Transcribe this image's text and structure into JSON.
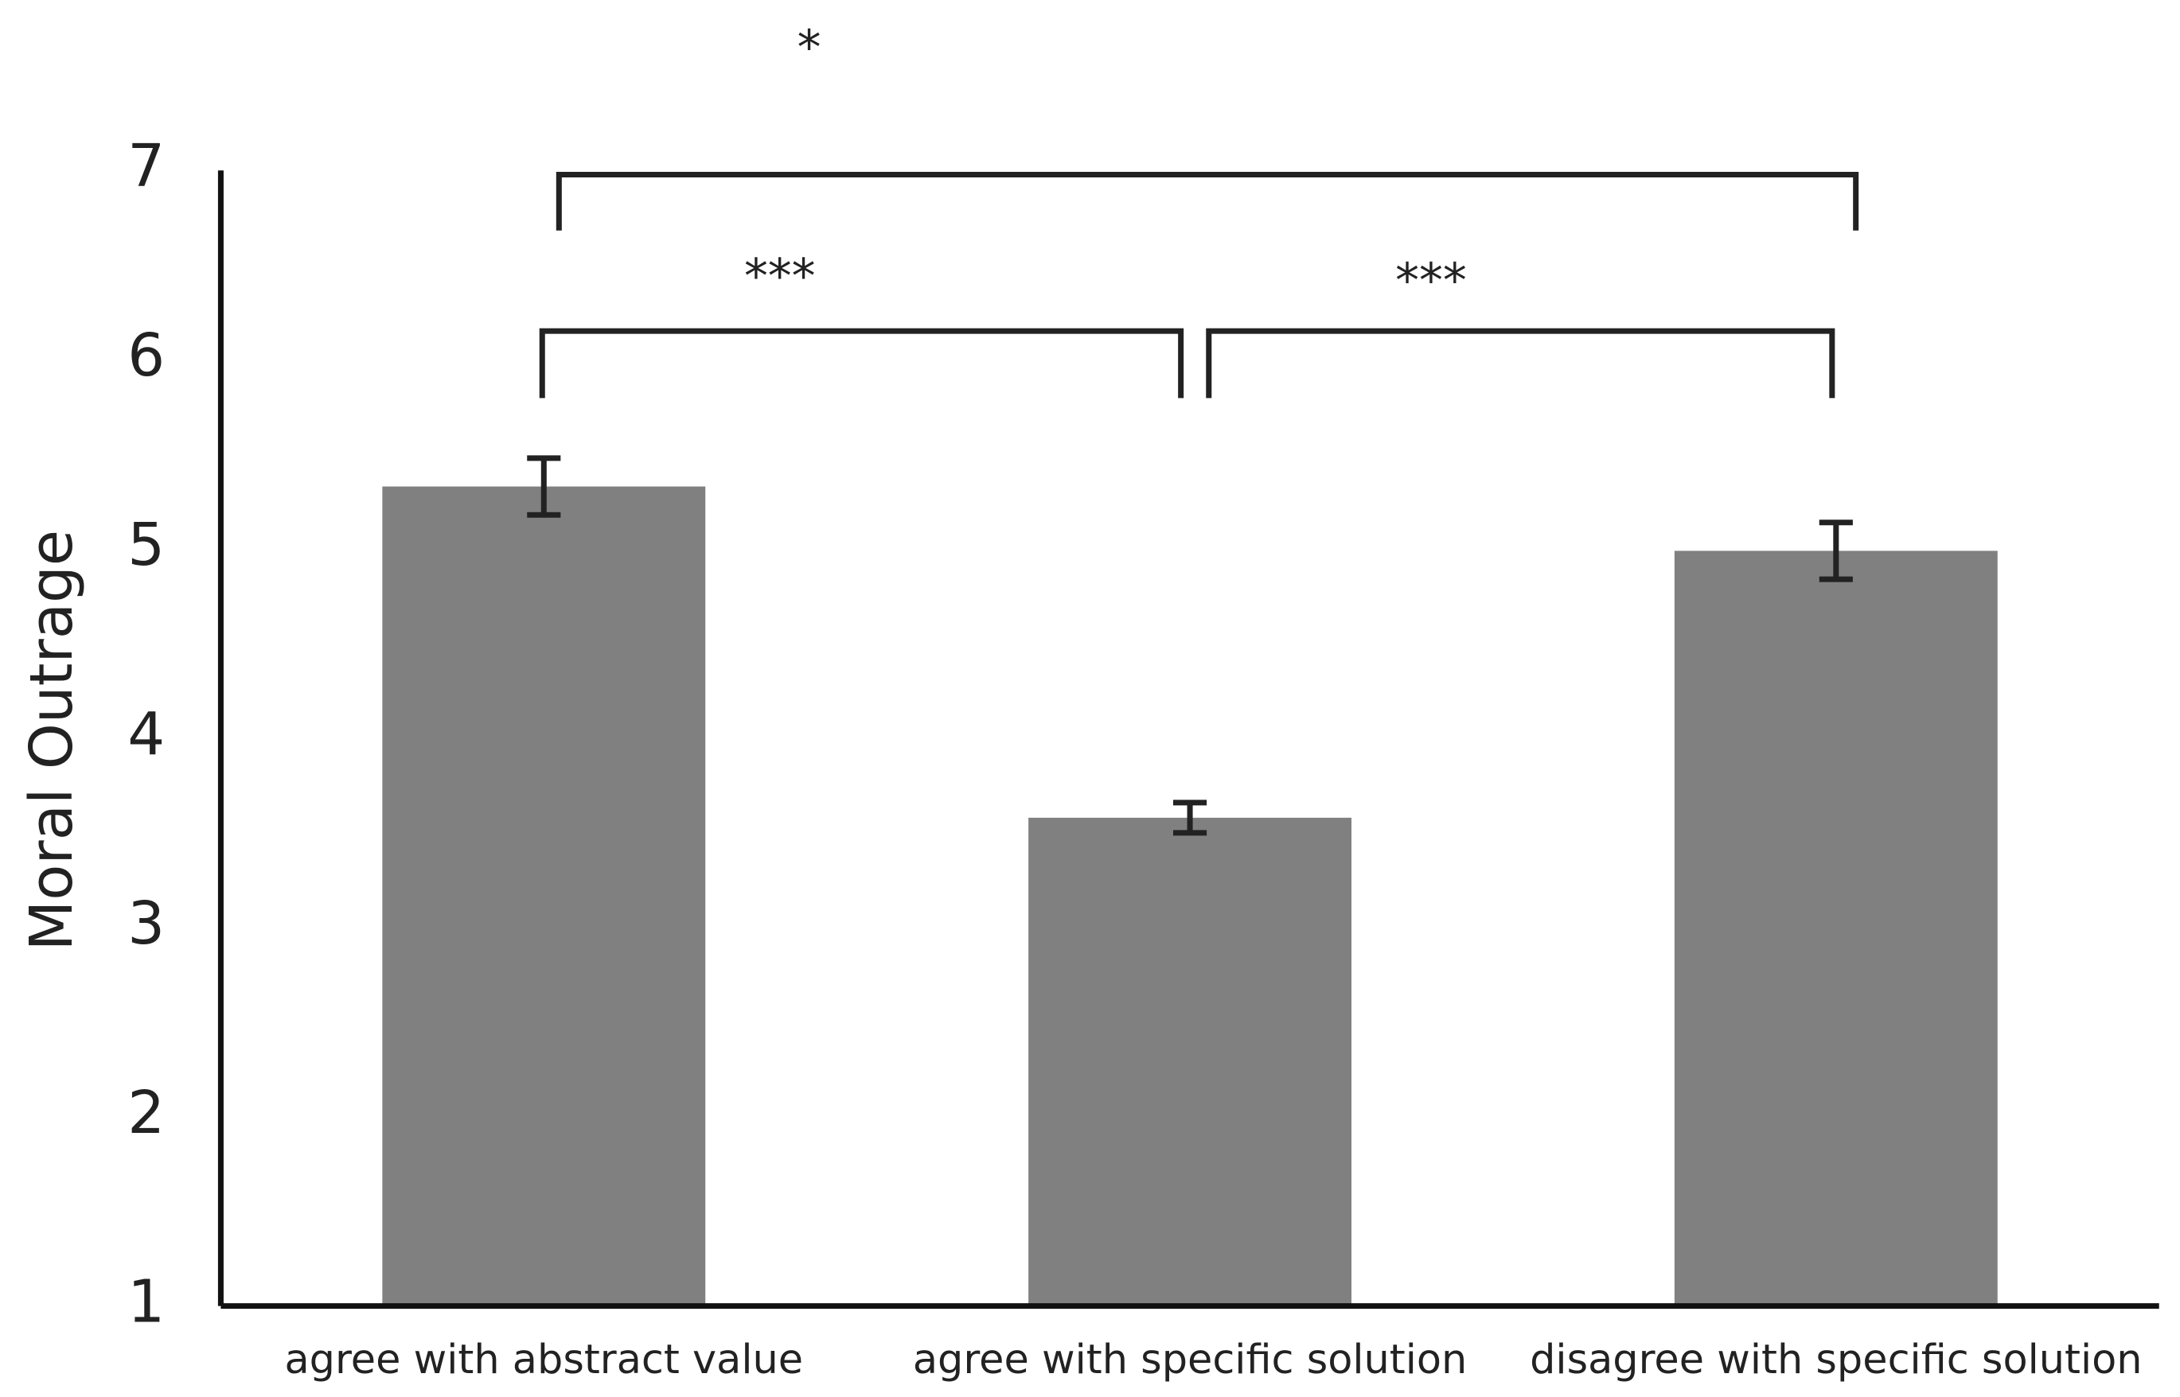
{
  "chart_data": {
    "type": "bar",
    "ylabel": "Moral Outrage",
    "categories": [
      "agree with abstract value",
      "agree with specific solution",
      "disagree with specific solution"
    ],
    "values": [
      5.33,
      3.58,
      4.99
    ],
    "errors": [
      0.15,
      0.08,
      0.15
    ],
    "color": "#808080",
    "ylim": [
      1,
      7
    ],
    "yticks": [
      1,
      2,
      3,
      4,
      5,
      6,
      7
    ],
    "grid": false,
    "annotations": [
      "*",
      "***",
      "***"
    ]
  }
}
